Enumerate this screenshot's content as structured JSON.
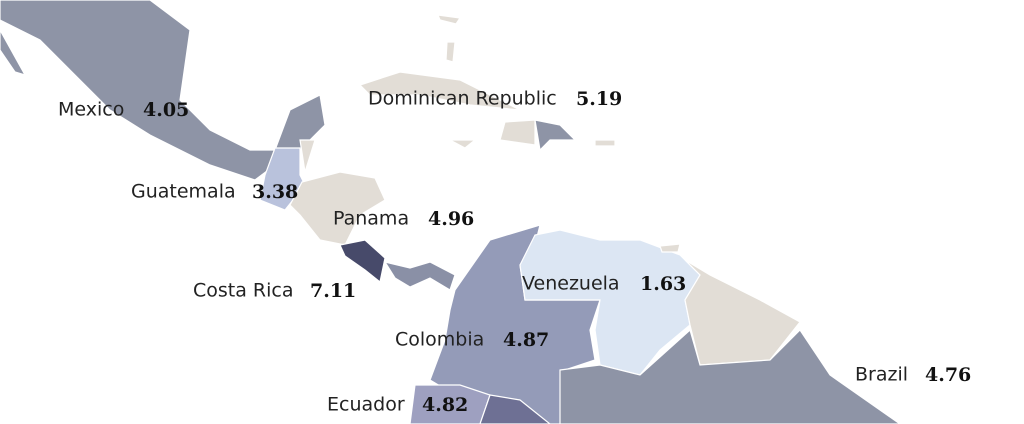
{
  "regions": [
    {
      "name": "Mexico",
      "value": 4.05
    },
    {
      "name": "Dominican Republic",
      "value": 5.19
    },
    {
      "name": "Guatemala",
      "value": 3.38
    },
    {
      "name": "Panama",
      "value": 4.96
    },
    {
      "name": "Costa Rica",
      "value": 7.11
    },
    {
      "name": "Venezuela",
      "value": 1.63
    },
    {
      "name": "Colombia",
      "value": 4.87
    },
    {
      "name": "Ecuador",
      "value": 4.82
    },
    {
      "name": "Brazil",
      "value": 4.76
    }
  ]
}
